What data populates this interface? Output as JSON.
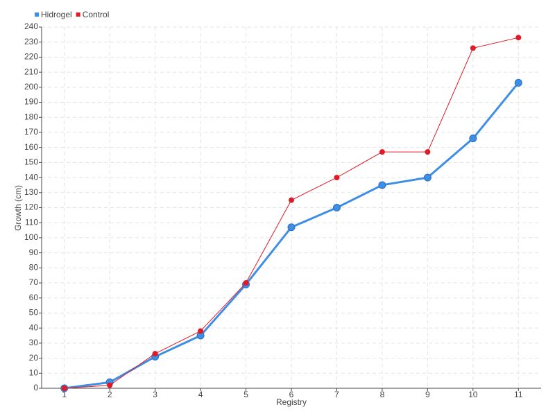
{
  "chart_data": {
    "type": "line",
    "x_label": "Registry",
    "y_label": "Growth (cm)",
    "categories": [
      "1",
      "2",
      "3",
      "4",
      "5",
      "6",
      "7",
      "8",
      "9",
      "10",
      "11"
    ],
    "series": [
      {
        "name": "Hidrogel",
        "color": "#3e8ee6",
        "values": [
          0,
          4,
          21,
          35,
          69,
          107,
          120,
          135,
          140,
          166,
          203
        ]
      },
      {
        "name": "Control",
        "color": "#e01a26",
        "values": [
          0,
          2,
          23,
          38,
          70,
          125,
          140,
          157,
          157,
          226,
          233
        ]
      }
    ],
    "ylim": [
      0,
      240
    ],
    "yticks": [
      0,
      10,
      20,
      30,
      40,
      50,
      60,
      70,
      80,
      90,
      100,
      110,
      120,
      130,
      140,
      150,
      160,
      170,
      180,
      190,
      200,
      210,
      220,
      230,
      240
    ],
    "grid": true,
    "legend": "top-left"
  }
}
